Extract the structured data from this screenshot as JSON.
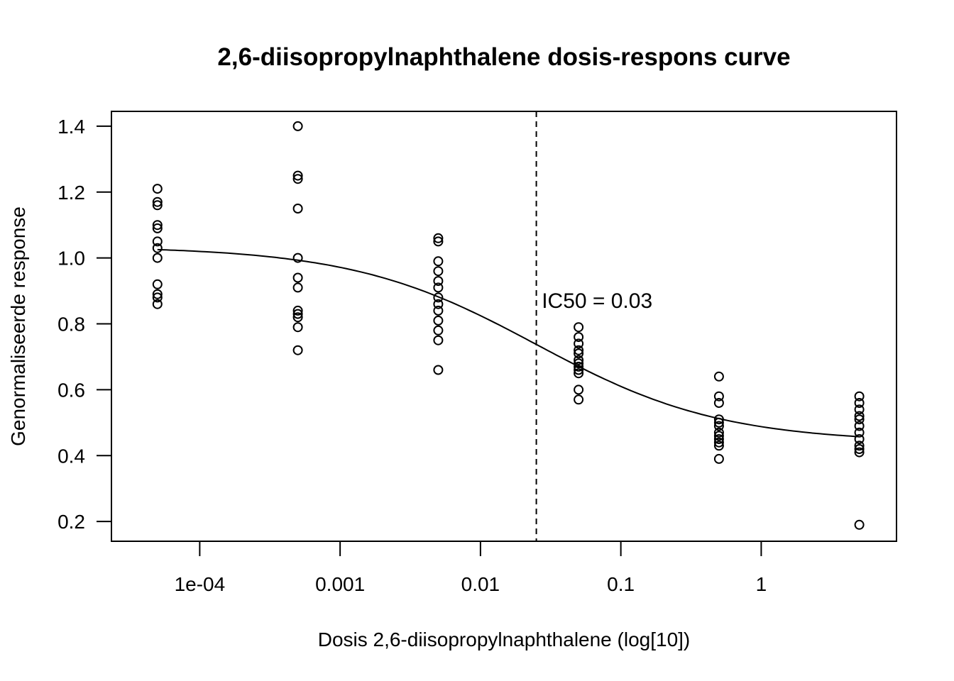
{
  "chart_data": {
    "type": "scatter",
    "title": "2,6-diisopropylnaphthalene dosis-respons curve",
    "xlabel": "Dosis 2,6-diisopropylnaphthalene (log[10])",
    "ylabel": "Genormaliseerde response",
    "x_scale": "log10",
    "xlim": [
      2.35e-05,
      9.2
    ],
    "ylim": [
      0.14,
      1.445
    ],
    "x_ticks": [
      {
        "value": 0.0001,
        "label": "1e-04"
      },
      {
        "value": 0.001,
        "label": "0.001"
      },
      {
        "value": 0.01,
        "label": "0.01"
      },
      {
        "value": 0.1,
        "label": "0.1"
      },
      {
        "value": 1,
        "label": "1"
      }
    ],
    "y_ticks": [
      {
        "value": 0.2,
        "label": "0.2"
      },
      {
        "value": 0.4,
        "label": "0.4"
      },
      {
        "value": 0.6,
        "label": "0.6"
      },
      {
        "value": 0.8,
        "label": "0.8"
      },
      {
        "value": 1.0,
        "label": "1.0"
      },
      {
        "value": 1.2,
        "label": "1.2"
      },
      {
        "value": 1.4,
        "label": "1.4"
      }
    ],
    "grid": false,
    "points": [
      {
        "x": 5e-05,
        "y": 1.21
      },
      {
        "x": 5e-05,
        "y": 1.17
      },
      {
        "x": 5e-05,
        "y": 1.16
      },
      {
        "x": 5e-05,
        "y": 1.1
      },
      {
        "x": 5e-05,
        "y": 1.09
      },
      {
        "x": 5e-05,
        "y": 1.05
      },
      {
        "x": 5e-05,
        "y": 1.03
      },
      {
        "x": 5e-05,
        "y": 1.0
      },
      {
        "x": 5e-05,
        "y": 0.92
      },
      {
        "x": 5e-05,
        "y": 0.89
      },
      {
        "x": 5e-05,
        "y": 0.88
      },
      {
        "x": 5e-05,
        "y": 0.86
      },
      {
        "x": 0.0005,
        "y": 1.4
      },
      {
        "x": 0.0005,
        "y": 1.25
      },
      {
        "x": 0.0005,
        "y": 1.24
      },
      {
        "x": 0.0005,
        "y": 1.15
      },
      {
        "x": 0.0005,
        "y": 1.0
      },
      {
        "x": 0.0005,
        "y": 0.94
      },
      {
        "x": 0.0005,
        "y": 0.91
      },
      {
        "x": 0.0005,
        "y": 0.84
      },
      {
        "x": 0.0005,
        "y": 0.83
      },
      {
        "x": 0.0005,
        "y": 0.82
      },
      {
        "x": 0.0005,
        "y": 0.79
      },
      {
        "x": 0.0005,
        "y": 0.72
      },
      {
        "x": 0.005,
        "y": 1.06
      },
      {
        "x": 0.005,
        "y": 1.05
      },
      {
        "x": 0.005,
        "y": 0.99
      },
      {
        "x": 0.005,
        "y": 0.96
      },
      {
        "x": 0.005,
        "y": 0.93
      },
      {
        "x": 0.005,
        "y": 0.91
      },
      {
        "x": 0.005,
        "y": 0.88
      },
      {
        "x": 0.005,
        "y": 0.86
      },
      {
        "x": 0.005,
        "y": 0.84
      },
      {
        "x": 0.005,
        "y": 0.81
      },
      {
        "x": 0.005,
        "y": 0.78
      },
      {
        "x": 0.005,
        "y": 0.75
      },
      {
        "x": 0.005,
        "y": 0.66
      },
      {
        "x": 0.05,
        "y": 0.79
      },
      {
        "x": 0.05,
        "y": 0.76
      },
      {
        "x": 0.05,
        "y": 0.74
      },
      {
        "x": 0.05,
        "y": 0.72
      },
      {
        "x": 0.05,
        "y": 0.71
      },
      {
        "x": 0.05,
        "y": 0.69
      },
      {
        "x": 0.05,
        "y": 0.68
      },
      {
        "x": 0.05,
        "y": 0.67
      },
      {
        "x": 0.05,
        "y": 0.66
      },
      {
        "x": 0.05,
        "y": 0.65
      },
      {
        "x": 0.05,
        "y": 0.6
      },
      {
        "x": 0.05,
        "y": 0.57
      },
      {
        "x": 0.5,
        "y": 0.64
      },
      {
        "x": 0.5,
        "y": 0.58
      },
      {
        "x": 0.5,
        "y": 0.56
      },
      {
        "x": 0.5,
        "y": 0.51
      },
      {
        "x": 0.5,
        "y": 0.5
      },
      {
        "x": 0.5,
        "y": 0.49
      },
      {
        "x": 0.5,
        "y": 0.47
      },
      {
        "x": 0.5,
        "y": 0.46
      },
      {
        "x": 0.5,
        "y": 0.45
      },
      {
        "x": 0.5,
        "y": 0.44
      },
      {
        "x": 0.5,
        "y": 0.43
      },
      {
        "x": 0.5,
        "y": 0.39
      },
      {
        "x": 5,
        "y": 0.58
      },
      {
        "x": 5,
        "y": 0.56
      },
      {
        "x": 5,
        "y": 0.54
      },
      {
        "x": 5,
        "y": 0.52
      },
      {
        "x": 5,
        "y": 0.51
      },
      {
        "x": 5,
        "y": 0.49
      },
      {
        "x": 5,
        "y": 0.47
      },
      {
        "x": 5,
        "y": 0.45
      },
      {
        "x": 5,
        "y": 0.43
      },
      {
        "x": 5,
        "y": 0.42
      },
      {
        "x": 5,
        "y": 0.41
      },
      {
        "x": 5,
        "y": 0.19
      }
    ],
    "fit_curve": {
      "model": "four-parameter log-logistic",
      "top": 1.035,
      "bottom": 0.44,
      "ic50": 0.025,
      "hill": 0.66,
      "x_range": [
        5e-05,
        5
      ]
    },
    "ic50_line": {
      "x": 0.025,
      "style": "dashed"
    },
    "annotation": {
      "text": "IC50 = 0.03",
      "x": 0.03,
      "y": 0.87
    }
  }
}
